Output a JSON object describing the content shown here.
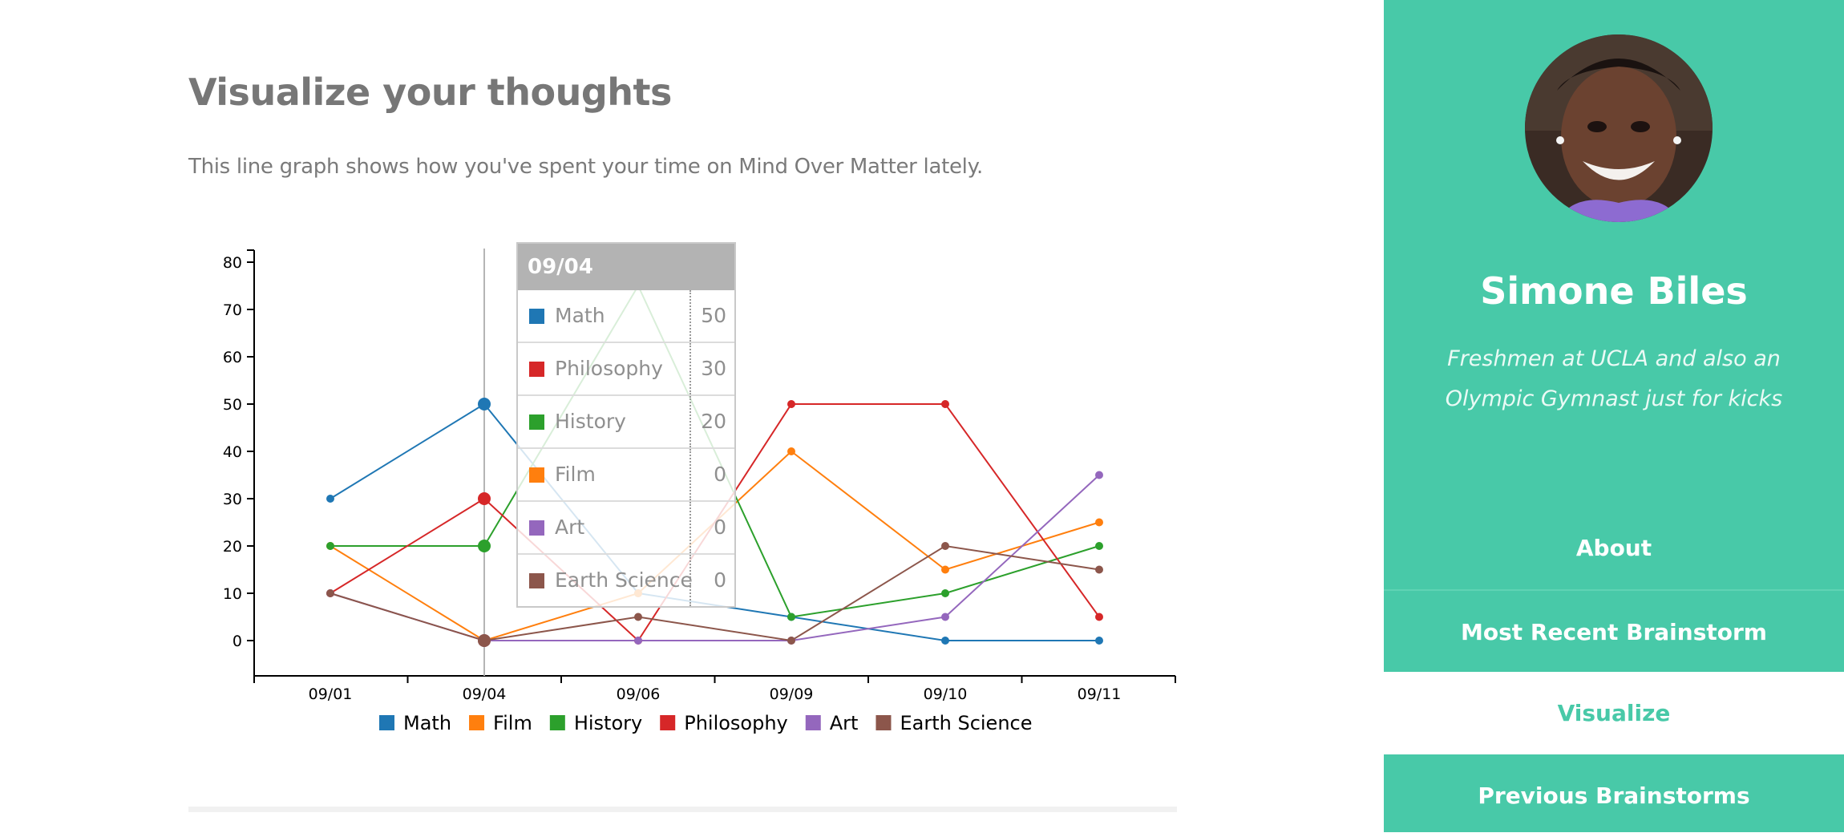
{
  "page": {
    "title": "Visualize your thoughts",
    "subtitle": "This line graph shows how you've spent your time on Mind Over Matter lately."
  },
  "chart_data": {
    "type": "line",
    "categories": [
      "09/01",
      "09/04",
      "09/06",
      "09/09",
      "09/10",
      "09/11"
    ],
    "ylim": [
      -7,
      82
    ],
    "yticks": [
      0,
      10,
      20,
      30,
      40,
      50,
      60,
      70,
      80
    ],
    "grid": false,
    "legend_position": "bottom-center",
    "series": [
      {
        "name": "Math",
        "color": "#1f77b4",
        "values": [
          30,
          50,
          10,
          5,
          0,
          0
        ]
      },
      {
        "name": "Film",
        "color": "#ff7f0e",
        "values": [
          20,
          0,
          10,
          40,
          15,
          25
        ]
      },
      {
        "name": "History",
        "color": "#2ca02c",
        "values": [
          20,
          20,
          75,
          5,
          10,
          20
        ]
      },
      {
        "name": "Philosophy",
        "color": "#d62728",
        "values": [
          10,
          30,
          0,
          50,
          50,
          5
        ]
      },
      {
        "name": "Art",
        "color": "#9467bd",
        "values": [
          10,
          0,
          0,
          0,
          5,
          35
        ]
      },
      {
        "name": "Earth Science",
        "color": "#8c564b",
        "values": [
          10,
          0,
          5,
          0,
          20,
          15
        ]
      }
    ],
    "highlight_category": "09/04"
  },
  "tooltip": {
    "title": "09/04",
    "rows": [
      {
        "name": "Math",
        "value": "50",
        "color": "#1f77b4"
      },
      {
        "name": "Philosophy",
        "value": "30",
        "color": "#d62728"
      },
      {
        "name": "History",
        "value": "20",
        "color": "#2ca02c"
      },
      {
        "name": "Film",
        "value": "0",
        "color": "#ff7f0e"
      },
      {
        "name": "Art",
        "value": "0",
        "color": "#9467bd"
      },
      {
        "name": "Earth Science",
        "value": "0",
        "color": "#8c564b"
      }
    ]
  },
  "sidebar": {
    "name": "Simone Biles",
    "bio": "Freshmen at UCLA and also an Olympic Gymnast just for kicks",
    "accent_color": "#48c9a8",
    "nav": [
      {
        "label": "About",
        "active": false
      },
      {
        "label": "Most Recent Brainstorm",
        "active": false
      },
      {
        "label": "Visualize",
        "active": true
      },
      {
        "label": "Previous Brainstorms",
        "active": false
      }
    ]
  }
}
